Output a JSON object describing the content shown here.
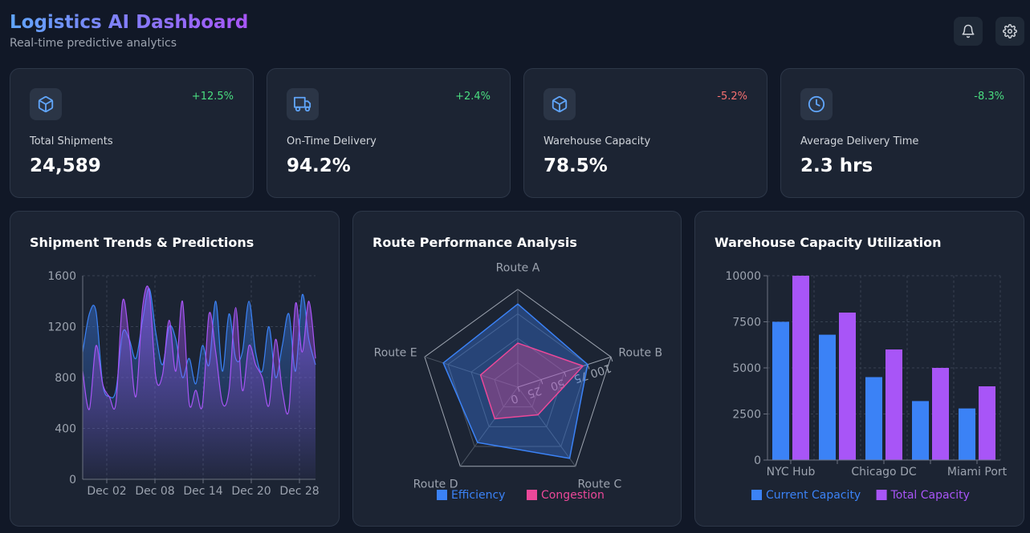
{
  "header": {
    "title": "Logistics AI Dashboard",
    "subtitle": "Real-time predictive analytics"
  },
  "actions": [
    {
      "icon": "bell-icon"
    },
    {
      "icon": "gear-icon"
    }
  ],
  "stats": [
    {
      "icon": "package-icon",
      "label": "Total Shipments",
      "value": "24,589",
      "change": "+12.5%",
      "change_color": "#4ade80"
    },
    {
      "icon": "truck-icon",
      "label": "On-Time Delivery",
      "value": "94.2%",
      "change": "+2.4%",
      "change_color": "#4ade80"
    },
    {
      "icon": "package-icon",
      "label": "Warehouse Capacity",
      "value": "78.5%",
      "change": "-5.2%",
      "change_color": "#f87171"
    },
    {
      "icon": "clock-icon",
      "label": "Average Delivery Time",
      "value": "2.3 hrs",
      "change": "-8.3%",
      "change_color": "#4ade80"
    }
  ],
  "panels": {
    "trends": {
      "title": "Shipment Trends & Predictions"
    },
    "routes": {
      "title": "Route Performance Analysis"
    },
    "warehouse": {
      "title": "Warehouse Capacity Utilization"
    }
  },
  "chart_data": [
    {
      "type": "area",
      "ylim": [
        0,
        1600
      ],
      "y_ticks": [
        0,
        400,
        800,
        1200,
        1600
      ],
      "x_tick_labels": [
        "Dec 02",
        "Dec 08",
        "Dec 14",
        "Dec 20",
        "Dec 28"
      ],
      "series": [
        {
          "color": "#3b82f6",
          "values": [
            1000,
            1300,
            1320,
            750,
            650,
            700,
            1150,
            1100,
            950,
            1250,
            1500,
            1150,
            900,
            1200,
            1100,
            800,
            950,
            750,
            1050,
            900,
            1400,
            850,
            1300,
            950,
            1000,
            1400,
            1000,
            850,
            1200,
            800,
            1050,
            1300,
            850,
            1450,
            1100,
            900
          ]
        },
        {
          "color": "#a855f7",
          "values": [
            850,
            550,
            1050,
            750,
            650,
            600,
            1400,
            1100,
            650,
            1350,
            1480,
            800,
            820,
            1250,
            850,
            1400,
            600,
            700,
            580,
            1300,
            1000,
            600,
            700,
            1350,
            700,
            1050,
            900,
            800,
            580,
            1100,
            700,
            550,
            1380,
            1000,
            1400,
            950
          ]
        }
      ]
    },
    {
      "type": "radar",
      "axes": [
        "Route A",
        "Route B",
        "Route C",
        "Route D",
        "Route E"
      ],
      "r_ticks": [
        0,
        25,
        50,
        75,
        100
      ],
      "rmax": 100,
      "legend": "bottom",
      "series": [
        {
          "name": "Efficiency",
          "color": "#3b82f6",
          "values": [
            85,
            75,
            90,
            70,
            80
          ]
        },
        {
          "name": "Congestion",
          "color": "#ec4899",
          "values": [
            45,
            70,
            35,
            40,
            40
          ]
        }
      ]
    },
    {
      "type": "bar",
      "categories": [
        "NYC Hub",
        "",
        "Chicago DC",
        "",
        "Miami Port"
      ],
      "ylim": [
        0,
        10000
      ],
      "y_ticks": [
        0,
        2500,
        5000,
        7500,
        10000
      ],
      "legend": "bottom",
      "series": [
        {
          "name": "Current Capacity",
          "color": "#3b82f6",
          "values": [
            7500,
            6800,
            4500,
            3200,
            2800
          ]
        },
        {
          "name": "Total Capacity",
          "color": "#a855f7",
          "values": [
            10000,
            8000,
            6000,
            5000,
            4000
          ]
        }
      ]
    }
  ]
}
